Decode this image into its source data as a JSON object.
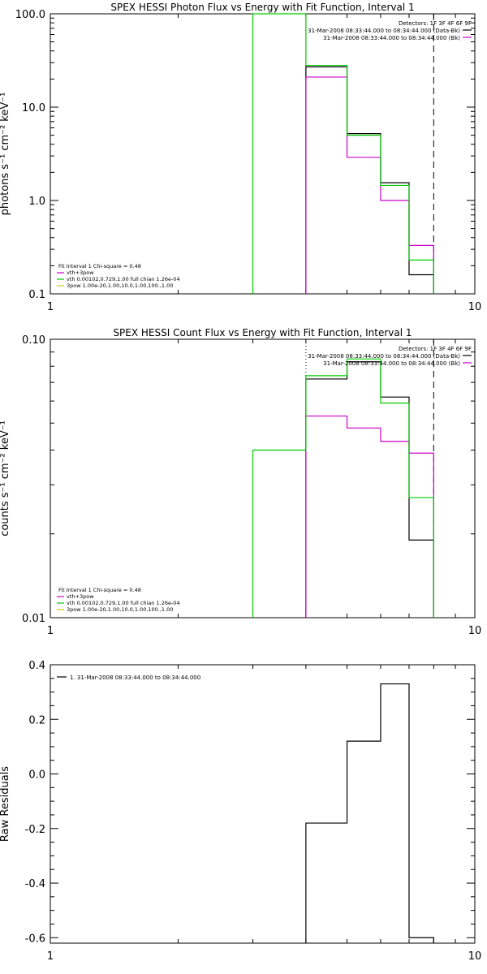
{
  "chart_data": [
    {
      "type": "line",
      "title": "SPEX HESSI Photon Flux vs Energy with Fit Function, Interval 1",
      "ylabel": "photons s⁻¹ cm⁻² keV⁻¹",
      "xlabel": "",
      "xscale": "log",
      "yscale": "log",
      "xlim": [
        1,
        10
      ],
      "ylim": [
        0.1,
        100
      ],
      "xticklabels": [
        {
          "v": 1,
          "t": "1"
        },
        {
          "v": 10,
          "t": "10"
        }
      ],
      "yticklabels": [
        {
          "v": 0.1,
          "t": "0.1"
        },
        {
          "v": 1,
          "t": "1.0"
        },
        {
          "v": 10,
          "t": "10.0"
        },
        {
          "v": 100,
          "t": "100.0"
        }
      ],
      "vlines": [
        {
          "x": 4,
          "style": "dotted",
          "color": "#000000"
        },
        {
          "x": 8,
          "style": "dashed",
          "color": "#000000"
        }
      ],
      "legend_top": [
        "Detectors: 1F 3F 4F 6F 9F",
        "31-Mar-2008 08:33:44.000 to 08:34:44.000 (Data-Bk)",
        "31-Mar-2008 08:33:44.000 to 08:34:44.000 (Bk)"
      ],
      "legend_top_colors": [
        "",
        "#000000",
        "#cc00cc"
      ],
      "legend_bottom": [
        "Fit Interval 1   Chi-square = 0.48",
        "vth+3pow",
        "vth 0.00102,0.729,1.00  full chian 1.26e-04",
        "3pow 1.00e-20,1.00,10.0,1.00,100.,1.00"
      ],
      "legend_bottom_colors": [
        "",
        "#cc00cc",
        "#00cc00",
        "#cccc00"
      ],
      "series": [
        {
          "color": "#000000",
          "edges": [
            4,
            5,
            6,
            7,
            8
          ],
          "values": [
            27,
            5.2,
            1.55,
            0.16
          ]
        },
        {
          "color": "#cc00cc",
          "edges": [
            4,
            5,
            6,
            7,
            8
          ],
          "values": [
            21,
            2.9,
            1.0,
            0.33
          ]
        },
        {
          "color": "#00cc00",
          "edges": [
            3,
            4,
            5,
            6,
            7,
            8
          ],
          "values": [
            100,
            28,
            5.0,
            1.45,
            0.23
          ]
        }
      ]
    },
    {
      "type": "line",
      "title": "SPEX HESSI Count Flux vs Energy with Fit Function, Interval 1",
      "ylabel": "counts s⁻¹ cm⁻² keV⁻¹",
      "xlabel": "",
      "xscale": "log",
      "yscale": "log",
      "xlim": [
        1,
        10
      ],
      "ylim": [
        0.01,
        0.1
      ],
      "xticklabels": [
        {
          "v": 1,
          "t": "1"
        },
        {
          "v": 10,
          "t": "10"
        }
      ],
      "yticklabels": [
        {
          "v": 0.01,
          "t": "0.01"
        },
        {
          "v": 0.1,
          "t": "0.10"
        }
      ],
      "vlines": [
        {
          "x": 4,
          "style": "dotted",
          "color": "#000000"
        },
        {
          "x": 8,
          "style": "dashed",
          "color": "#000000"
        }
      ],
      "legend_top": [
        "Detectors: 1F 3F 4F 6F 9F",
        "31-Mar-2008 08:33:44.000 to 08:34:44.000 (Data-Bk)",
        "31-Mar-2008 08:33:44.000 to 08:34:44.000 (Bk)"
      ],
      "legend_top_colors": [
        "",
        "#000000",
        "#cc00cc"
      ],
      "legend_bottom": [
        "Fit Interval 1   Chi-square = 0.48",
        "vth+3pow",
        "vth 0.00102,0.729,1.00  full chian 1.26e-04",
        "3pow 1.00e-20,1.00,10.0,1.00,100.,1.00"
      ],
      "legend_bottom_colors": [
        "",
        "#cc00cc",
        "#00cc00",
        "#cccc00"
      ],
      "series": [
        {
          "color": "#000000",
          "edges": [
            4,
            5,
            6,
            7,
            8
          ],
          "values": [
            0.072,
            0.083,
            0.062,
            0.019
          ]
        },
        {
          "color": "#cc00cc",
          "edges": [
            4,
            5,
            6,
            7,
            8
          ],
          "values": [
            0.053,
            0.048,
            0.043,
            0.039
          ]
        },
        {
          "color": "#00cc00",
          "edges": [
            3,
            4,
            5,
            6,
            7,
            8
          ],
          "values": [
            0.04,
            0.074,
            0.085,
            0.059,
            0.027
          ]
        }
      ]
    },
    {
      "type": "line",
      "title": "",
      "ylabel": "Raw Residuals",
      "xlabel": "",
      "xscale": "log",
      "yscale": "linear",
      "xlim": [
        1,
        10
      ],
      "ylim": [
        -0.62,
        0.4
      ],
      "xticklabels": [
        {
          "v": 1,
          "t": "1"
        },
        {
          "v": 10,
          "t": "10"
        }
      ],
      "yticklabels": [
        {
          "v": -0.6,
          "t": "-0.6"
        },
        {
          "v": -0.4,
          "t": "-0.4"
        },
        {
          "v": -0.2,
          "t": "-0.2"
        },
        {
          "v": 0,
          "t": "0.0"
        },
        {
          "v": 0.2,
          "t": "0.2"
        },
        {
          "v": 0.4,
          "t": "0.4"
        }
      ],
      "yminor": 0.05,
      "vlines": [],
      "legend_top": [],
      "legend_top_colors": [],
      "legend_bottom": [],
      "legend_bottom_colors": [],
      "legend_left": [
        "1. 31-Mar-2008 08:33:44.000 to 08:34:44.000"
      ],
      "series": [
        {
          "color": "#000000",
          "edges": [
            4,
            5,
            6,
            7,
            8
          ],
          "values": [
            -0.18,
            0.12,
            0.33,
            -0.6
          ]
        }
      ]
    }
  ]
}
